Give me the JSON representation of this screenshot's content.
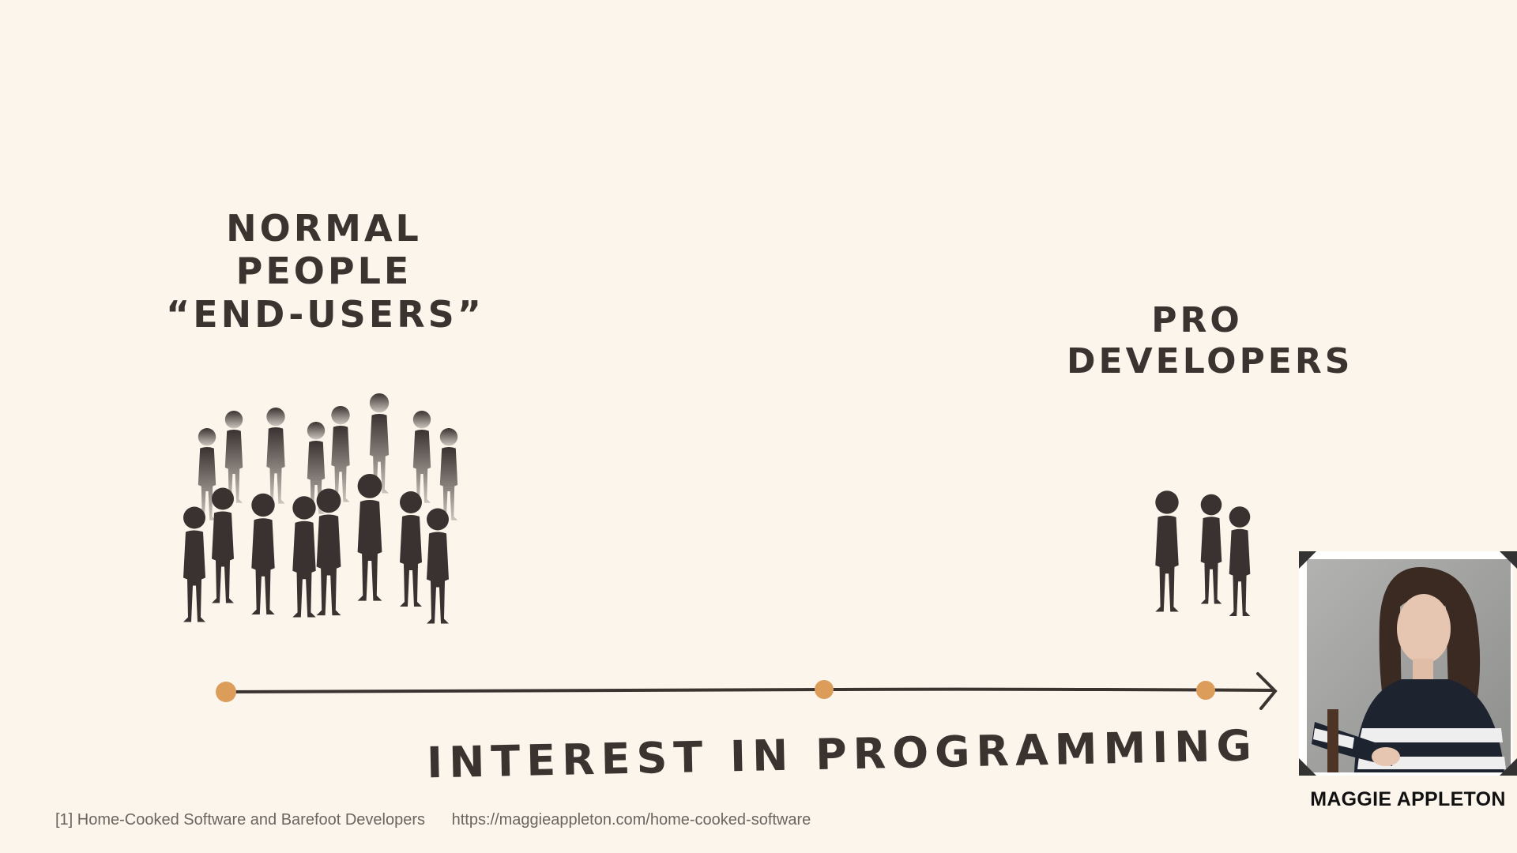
{
  "slide": {
    "labels": {
      "left": [
        "NORMAL",
        "PEOPLE",
        "“END-USERS”"
      ],
      "right": [
        "PRO",
        "DEVELOPERS"
      ],
      "axis": "INTEREST IN PROGRAMMING"
    },
    "footer": {
      "citation": "[1] Home-Cooked Software and Barefoot Developers",
      "url": "https://maggieappleton.com/home-cooked-software"
    },
    "colors": {
      "background": "#fbf5ec",
      "ink": "#3a3230",
      "dot": "#dc9c5a"
    }
  },
  "speaker": {
    "name": "MAGGIE APPLETON"
  }
}
